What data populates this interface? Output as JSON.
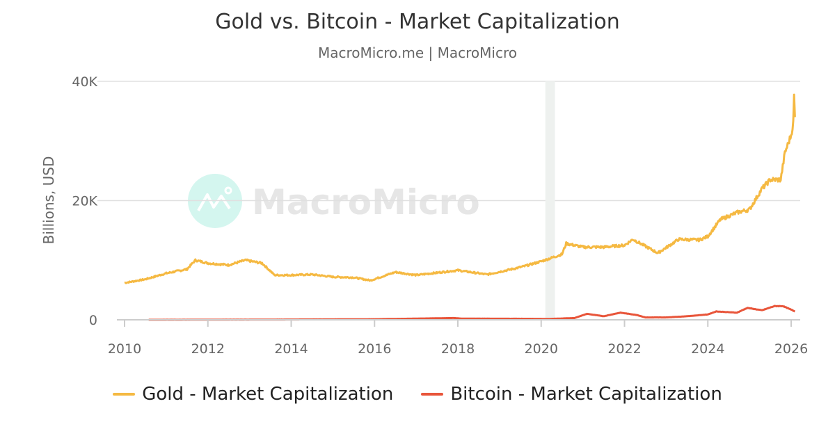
{
  "chart_data": {
    "type": "line",
    "title": "Gold vs. Bitcoin - Market Capitalization",
    "subtitle": "MacroMicro.me | MacroMicro",
    "watermark": "MacroMicro",
    "ylabel": "Billions, USD",
    "xlabel": "",
    "xlim": [
      2010,
      2026.2
    ],
    "ylim": [
      0,
      40000
    ],
    "x_ticks": [
      "2010",
      "2012",
      "2014",
      "2016",
      "2018",
      "2020",
      "2022",
      "2024",
      "2026"
    ],
    "y_ticks": [
      {
        "value": 0,
        "label": "0"
      },
      {
        "value": 20000,
        "label": "20K"
      },
      {
        "value": 40000,
        "label": "40K"
      }
    ],
    "grid": true,
    "legend_position": "bottom",
    "shaded_periods": [
      [
        2020.1,
        2020.33
      ]
    ],
    "series": [
      {
        "name": "Gold - Market Capitalization",
        "color": "#f5b942",
        "x": [
          2010,
          2010.5,
          2011,
          2011.5,
          2011.7,
          2012,
          2012.5,
          2012.9,
          2013.3,
          2013.6,
          2014,
          2014.5,
          2015,
          2015.5,
          2015.9,
          2016.5,
          2017,
          2017.5,
          2018,
          2018.7,
          2019.3,
          2019.6,
          2020,
          2020.5,
          2020.6,
          2021,
          2021.5,
          2022,
          2022.2,
          2022.8,
          2023.3,
          2023.8,
          2024,
          2024.3,
          2024.7,
          2025,
          2025.3,
          2025.5,
          2025.75,
          2025.85,
          2026.0,
          2026.05,
          2026.07,
          2026.09
        ],
        "y": [
          6200,
          6800,
          7800,
          8500,
          10000,
          9500,
          9200,
          10000,
          9500,
          7500,
          7500,
          7600,
          7200,
          7100,
          6600,
          8000,
          7500,
          7900,
          8300,
          7600,
          8500,
          9000,
          9800,
          11000,
          12800,
          12200,
          12200,
          12500,
          13500,
          11200,
          13500,
          13400,
          14000,
          16800,
          18000,
          18500,
          22000,
          23500,
          23500,
          28000,
          31000,
          33000,
          37500,
          34000
        ]
      },
      {
        "name": "Bitcoin - Market Capitalization",
        "color": "#e8553a",
        "x": [
          2010.58,
          2013,
          2016,
          2017.9,
          2018.1,
          2019.5,
          2020.2,
          2020.8,
          2021.1,
          2021.5,
          2021.9,
          2022.3,
          2022.5,
          2023,
          2023.5,
          2024,
          2024.2,
          2024.7,
          2024.95,
          2025.3,
          2025.6,
          2025.8,
          2026.0,
          2026.09
        ],
        "y": [
          0,
          20,
          100,
          300,
          200,
          180,
          150,
          300,
          1000,
          600,
          1200,
          800,
          400,
          400,
          600,
          900,
          1400,
          1200,
          2000,
          1600,
          2300,
          2300,
          1700,
          1400
        ]
      }
    ]
  }
}
